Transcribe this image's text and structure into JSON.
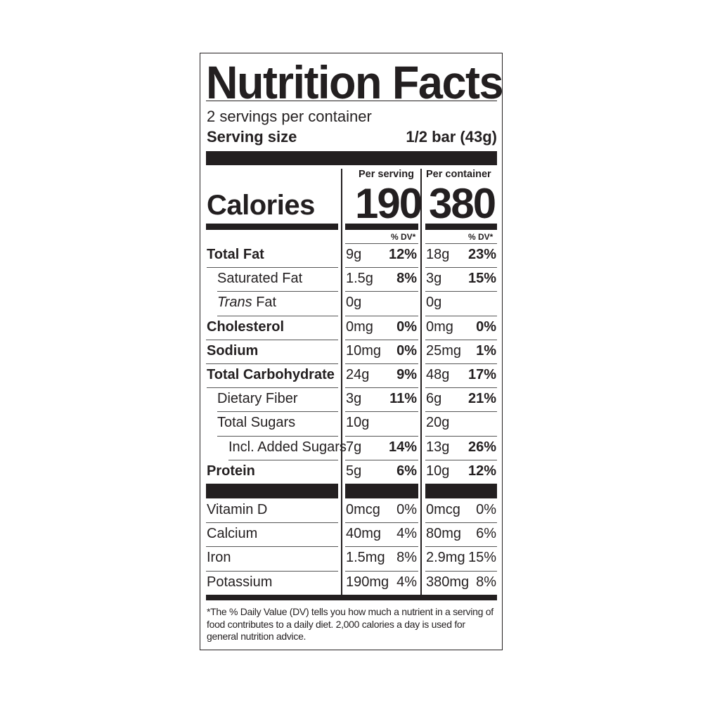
{
  "title": "Nutrition Facts",
  "servings_per_container": "2 servings per container",
  "serving_size_label": "Serving size",
  "serving_size_value": "1/2 bar (43g)",
  "columns": {
    "per_serving": "Per serving",
    "per_container": "Per container"
  },
  "calories": {
    "label": "Calories",
    "per_serving": "190",
    "per_container": "380"
  },
  "dv_header": "% DV*",
  "nutrients": [
    {
      "label": "Total Fat",
      "bold": true,
      "indent": 0,
      "s_amt": "9g",
      "s_pct": "12%",
      "c_amt": "18g",
      "c_pct": "23%"
    },
    {
      "label": "Saturated Fat",
      "bold": false,
      "indent": 1,
      "s_amt": "1.5g",
      "s_pct": "8%",
      "c_amt": "3g",
      "c_pct": "15%"
    },
    {
      "label": "Trans",
      "label_rest": " Fat",
      "bold": false,
      "indent": 1,
      "italic_prefix": true,
      "s_amt": "0g",
      "s_pct": "",
      "c_amt": "0g",
      "c_pct": ""
    },
    {
      "label": "Cholesterol",
      "bold": true,
      "indent": 0,
      "s_amt": "0mg",
      "s_pct": "0%",
      "c_amt": "0mg",
      "c_pct": "0%"
    },
    {
      "label": "Sodium",
      "bold": true,
      "indent": 0,
      "s_amt": "10mg",
      "s_pct": "0%",
      "c_amt": "25mg",
      "c_pct": "1%"
    },
    {
      "label": "Total Carbohydrate",
      "bold": true,
      "indent": 0,
      "s_amt": "24g",
      "s_pct": "9%",
      "c_amt": "48g",
      "c_pct": "17%"
    },
    {
      "label": "Dietary Fiber",
      "bold": false,
      "indent": 1,
      "s_amt": "3g",
      "s_pct": "11%",
      "c_amt": "6g",
      "c_pct": "21%"
    },
    {
      "label": "Total Sugars",
      "bold": false,
      "indent": 1,
      "s_amt": "10g",
      "s_pct": "",
      "c_amt": "20g",
      "c_pct": ""
    },
    {
      "label": "Incl. Added Sugars",
      "bold": false,
      "indent": 2,
      "s_amt": "7g",
      "s_pct": "14%",
      "c_amt": "13g",
      "c_pct": "26%"
    },
    {
      "label": "Protein",
      "bold": true,
      "indent": 0,
      "s_amt": "5g",
      "s_pct": "6%",
      "c_amt": "10g",
      "c_pct": "12%"
    }
  ],
  "vitamins": [
    {
      "label": "Vitamin D",
      "s_amt": "0mcg",
      "s_pct": "0%",
      "c_amt": "0mcg",
      "c_pct": "0%"
    },
    {
      "label": "Calcium",
      "s_amt": "40mg",
      "s_pct": "4%",
      "c_amt": "80mg",
      "c_pct": "6%"
    },
    {
      "label": "Iron",
      "s_amt": "1.5mg",
      "s_pct": "8%",
      "c_amt": "2.9mg",
      "c_pct": "15%"
    },
    {
      "label": "Potassium",
      "s_amt": "190mg",
      "s_pct": "4%",
      "c_amt": "380mg",
      "c_pct": "8%"
    }
  ],
  "footnote": "*The % Daily Value (DV) tells you how much a nutrient in a serving of food contributes to a daily diet. 2,000 calories a day is used for general nutrition advice."
}
